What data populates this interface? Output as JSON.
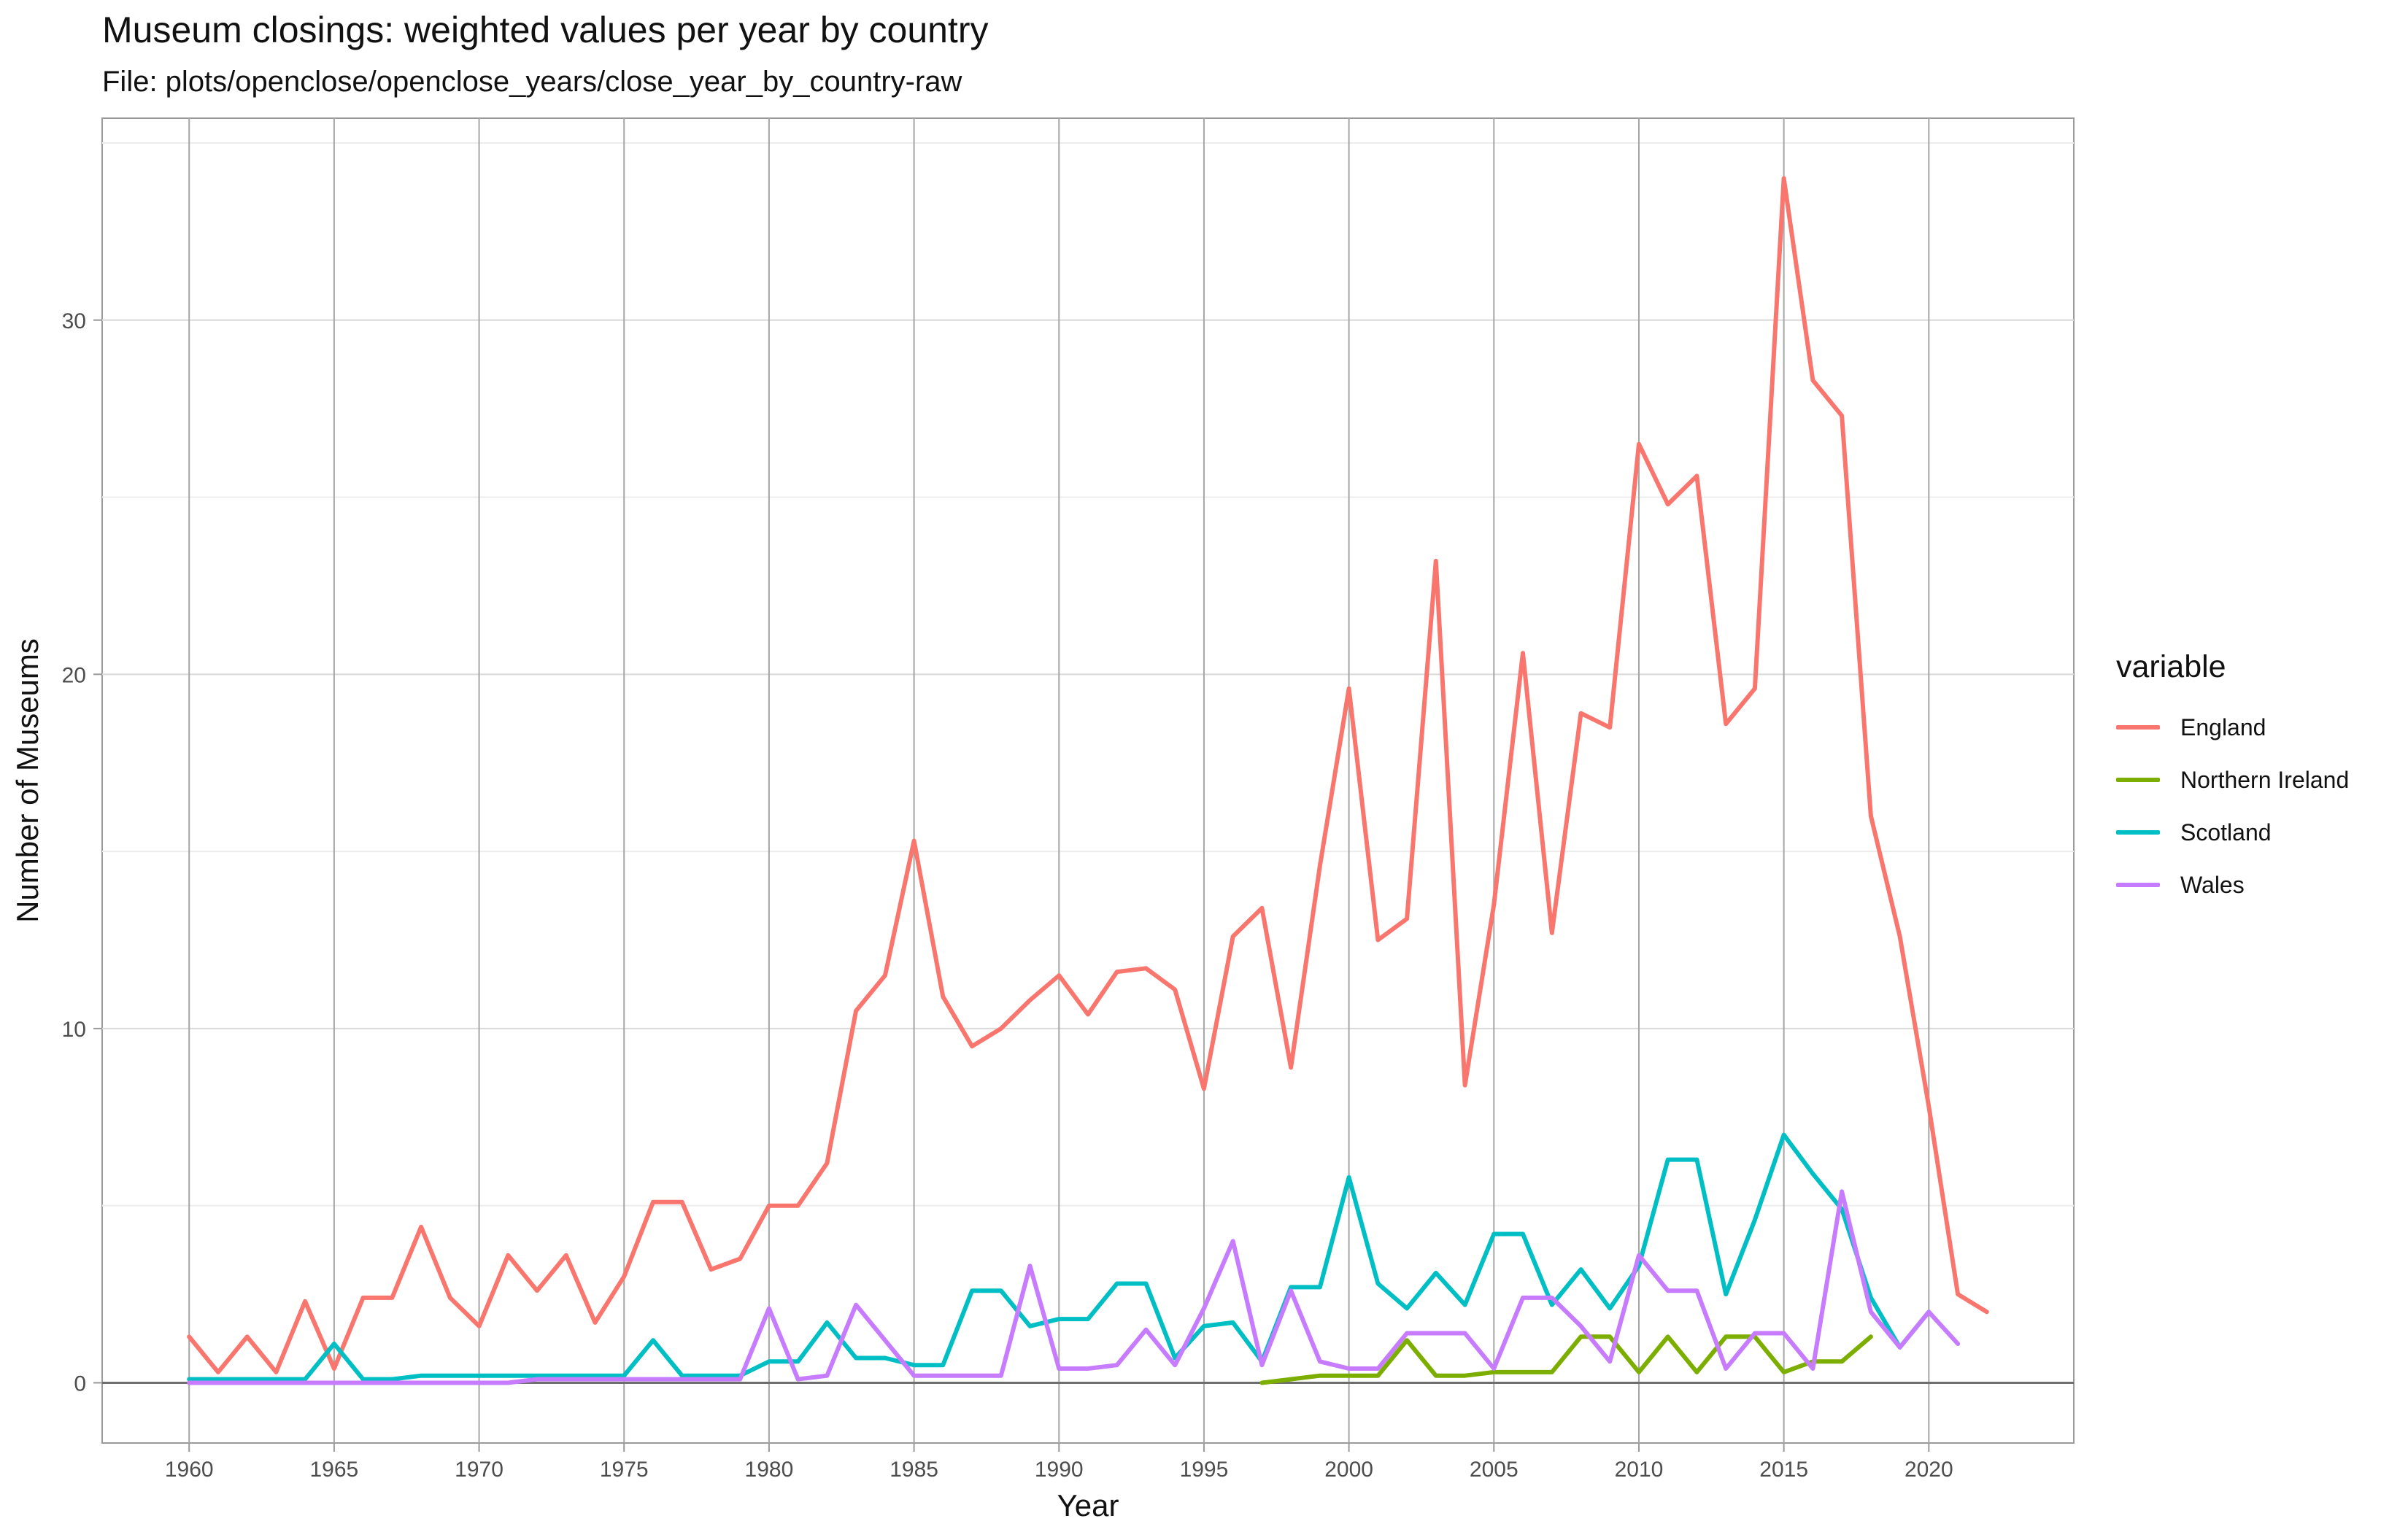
{
  "chart_data": {
    "type": "line",
    "title": "Museum closings: weighted values per year by country",
    "subtitle": "File: plots/openclose/openclose_years/close_year_by_country-raw",
    "xlabel": "Year",
    "ylabel": "Number of Museums",
    "xlim": [
      1957,
      2025
    ],
    "ylim": [
      -1.7,
      35.7
    ],
    "x_ticks": [
      1960,
      1965,
      1970,
      1975,
      1980,
      1985,
      1990,
      1995,
      2000,
      2005,
      2010,
      2015,
      2020
    ],
    "y_ticks": [
      0,
      10,
      20,
      30
    ],
    "grid": true,
    "legend": {
      "title": "variable",
      "position": "right"
    },
    "series": [
      {
        "name": "England",
        "color": "#F8766D",
        "x": [
          1960,
          1961,
          1962,
          1963,
          1964,
          1965,
          1966,
          1967,
          1968,
          1969,
          1970,
          1971,
          1972,
          1973,
          1974,
          1975,
          1976,
          1977,
          1978,
          1979,
          1980,
          1981,
          1982,
          1983,
          1984,
          1985,
          1986,
          1987,
          1988,
          1989,
          1990,
          1991,
          1992,
          1993,
          1994,
          1995,
          1996,
          1997,
          1998,
          1999,
          2000,
          2001,
          2002,
          2003,
          2004,
          2005,
          2006,
          2007,
          2008,
          2009,
          2010,
          2011,
          2012,
          2013,
          2014,
          2015,
          2016,
          2017,
          2018,
          2019,
          2020,
          2021,
          2022
        ],
        "values": [
          1.3,
          0.3,
          1.3,
          0.3,
          2.3,
          0.4,
          2.4,
          2.4,
          4.4,
          2.4,
          1.6,
          3.6,
          2.6,
          3.6,
          1.7,
          3.0,
          5.1,
          5.1,
          3.2,
          3.5,
          5.0,
          5.0,
          6.2,
          10.5,
          11.5,
          15.3,
          10.9,
          9.5,
          10.0,
          10.8,
          11.5,
          10.4,
          11.6,
          11.7,
          11.1,
          8.3,
          12.6,
          13.4,
          8.9,
          14.6,
          19.6,
          12.5,
          13.1,
          23.2,
          8.4,
          13.5,
          20.6,
          12.7,
          18.9,
          18.5,
          26.5,
          24.8,
          25.6,
          18.6,
          19.6,
          34.0,
          28.3,
          27.3,
          16.0,
          12.6,
          7.8,
          2.5,
          2.0
        ]
      },
      {
        "name": "Northern Ireland",
        "color": "#7CAE00",
        "x": [
          1997,
          1998,
          1999,
          2000,
          2001,
          2002,
          2003,
          2004,
          2005,
          2006,
          2007,
          2008,
          2009,
          2010,
          2011,
          2012,
          2013,
          2014,
          2015,
          2016,
          2017,
          2018
        ],
        "values": [
          0.0,
          0.1,
          0.2,
          0.2,
          0.2,
          1.2,
          0.2,
          0.2,
          0.3,
          0.3,
          0.3,
          1.3,
          1.3,
          0.3,
          1.3,
          0.3,
          1.3,
          1.3,
          0.3,
          0.6,
          0.6,
          1.3
        ]
      },
      {
        "name": "Scotland",
        "color": "#00BFC4",
        "x": [
          1960,
          1961,
          1962,
          1963,
          1964,
          1965,
          1966,
          1967,
          1968,
          1969,
          1970,
          1971,
          1972,
          1973,
          1974,
          1975,
          1976,
          1977,
          1978,
          1979,
          1980,
          1981,
          1982,
          1983,
          1984,
          1985,
          1986,
          1987,
          1988,
          1989,
          1990,
          1991,
          1992,
          1993,
          1994,
          1995,
          1996,
          1997,
          1998,
          1999,
          2000,
          2001,
          2002,
          2003,
          2004,
          2005,
          2006,
          2007,
          2008,
          2009,
          2010,
          2011,
          2012,
          2013,
          2014,
          2015,
          2016,
          2017,
          2018,
          2019,
          2020
        ],
        "values": [
          0.1,
          0.1,
          0.1,
          0.1,
          0.1,
          1.1,
          0.1,
          0.1,
          0.2,
          0.2,
          0.2,
          0.2,
          0.2,
          0.2,
          0.2,
          0.2,
          1.2,
          0.2,
          0.2,
          0.2,
          0.6,
          0.6,
          1.7,
          0.7,
          0.7,
          0.5,
          0.5,
          2.6,
          2.6,
          1.6,
          1.8,
          1.8,
          2.8,
          2.8,
          0.7,
          1.6,
          1.7,
          0.6,
          2.7,
          2.7,
          5.8,
          2.8,
          2.1,
          3.1,
          2.2,
          4.2,
          4.2,
          2.2,
          3.2,
          2.1,
          3.3,
          6.3,
          6.3,
          2.5,
          4.6,
          7.0,
          5.9,
          4.9,
          2.4,
          1.0,
          2.0
        ]
      },
      {
        "name": "Wales",
        "color": "#C77CFF",
        "x": [
          1960,
          1961,
          1962,
          1963,
          1964,
          1965,
          1966,
          1967,
          1968,
          1969,
          1970,
          1971,
          1972,
          1973,
          1974,
          1975,
          1976,
          1977,
          1978,
          1979,
          1980,
          1981,
          1982,
          1983,
          1984,
          1985,
          1986,
          1987,
          1988,
          1989,
          1990,
          1991,
          1992,
          1993,
          1994,
          1995,
          1996,
          1997,
          1998,
          1999,
          2000,
          2001,
          2002,
          2003,
          2004,
          2005,
          2006,
          2007,
          2008,
          2009,
          2010,
          2011,
          2012,
          2013,
          2014,
          2015,
          2016,
          2017,
          2018,
          2019,
          2020,
          2021
        ],
        "values": [
          0,
          0,
          0,
          0,
          0,
          0,
          0,
          0,
          0,
          0,
          0,
          0,
          0.1,
          0.1,
          0.1,
          0.1,
          0.1,
          0.1,
          0.1,
          0.1,
          2.1,
          0.1,
          0.2,
          2.2,
          1.2,
          0.2,
          0.2,
          0.2,
          0.2,
          3.3,
          0.4,
          0.4,
          0.5,
          1.5,
          0.5,
          2.1,
          4.0,
          0.5,
          2.6,
          0.6,
          0.4,
          0.4,
          1.4,
          1.4,
          1.4,
          0.4,
          2.4,
          2.4,
          1.6,
          0.6,
          3.6,
          2.6,
          2.6,
          0.4,
          1.4,
          1.4,
          0.4,
          5.4,
          2.0,
          1.0,
          2.0,
          1.1
        ]
      }
    ]
  }
}
